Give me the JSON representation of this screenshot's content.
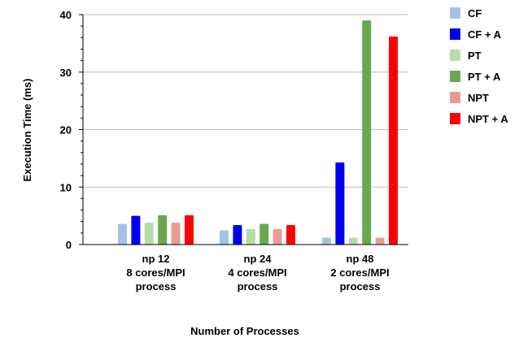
{
  "chart_data": {
    "type": "bar",
    "xlabel": "Number of Processes",
    "ylabel": "Execution Time (ms)",
    "ylim": [
      0,
      40
    ],
    "yticks": [
      0,
      10,
      20,
      30,
      40
    ],
    "legend_position": "right",
    "categories": [
      [
        "np 12",
        "8 cores/MPI",
        "process"
      ],
      [
        "np 24",
        "4 cores/MPI",
        "process"
      ],
      [
        "np 48",
        "2 cores/MPI",
        "process"
      ]
    ],
    "series": [
      {
        "name": "CF",
        "color": "#a4c2e4",
        "values": [
          3.6,
          2.5,
          1.2
        ]
      },
      {
        "name": "CF + A",
        "color": "#0000ee",
        "values": [
          5.0,
          3.4,
          14.3
        ]
      },
      {
        "name": "PT",
        "color": "#b7dca6",
        "values": [
          3.8,
          2.7,
          1.2
        ]
      },
      {
        "name": "PT + A",
        "color": "#6aa84f",
        "values": [
          5.1,
          3.6,
          39.0
        ]
      },
      {
        "name": "NPT",
        "color": "#e99a98",
        "values": [
          3.8,
          2.7,
          1.2
        ]
      },
      {
        "name": "NPT + A",
        "color": "#ff0000",
        "values": [
          5.1,
          3.4,
          36.2
        ]
      }
    ]
  }
}
